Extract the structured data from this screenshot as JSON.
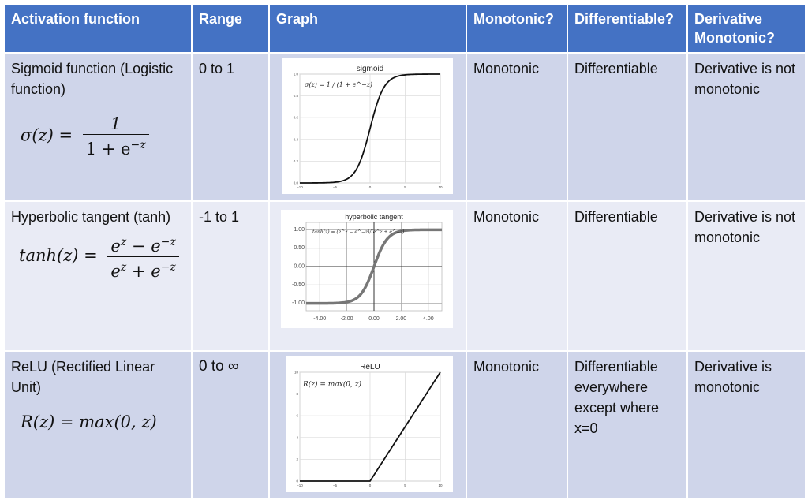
{
  "header": {
    "col1": "Activation function",
    "col2": "Range",
    "col3": "Graph",
    "col4": "Monotonic?",
    "col5": "Differentiable?",
    "col6": "Derivative Monotonic?"
  },
  "rows": [
    {
      "name": "Sigmoid function (Logistic function)",
      "formula_lhs": "σ(z) =",
      "formula_num": "1",
      "formula_den_base": "1 + e",
      "formula_den_exp": "−z",
      "range": "0 to 1",
      "monotonic": "Monotonic",
      "differentiable": "Differentiable",
      "derivative": "Derivative is not monotonic",
      "graph": {
        "title": "sigmoid",
        "formula_text": "σ(z) = 1 / (1 + e^−z)",
        "x_ticks": [
          "−10",
          "−5",
          "0",
          "5",
          "10"
        ],
        "y_ticks": [
          "0.0",
          "0.2",
          "0.4",
          "0.6",
          "0.8",
          "1.0"
        ]
      }
    },
    {
      "name": "Hyperbolic tangent (tanh)",
      "formula_lhs": "tanh(z) =",
      "formula_num_a": "e",
      "formula_num_exp_a": "z",
      "formula_num_mid": " − e",
      "formula_num_exp_b": "−z",
      "formula_den_a": "e",
      "formula_den_exp_a": "z",
      "formula_den_mid": " + e",
      "formula_den_exp_b": "−z",
      "range": "-1 to 1",
      "monotonic": "Monotonic",
      "differentiable": "Differentiable",
      "derivative": "Derivative is not monotonic",
      "graph": {
        "title": "hyperbolic tangent",
        "formula_text": "tanh(z) = (e^z − e^−z)/(e^z + e^−z)",
        "x_ticks": [
          "-4.00",
          "-2.00",
          "0.00",
          "2.00",
          "4.00"
        ],
        "y_ticks": [
          "1.00",
          "0.50",
          "0.00",
          "-0.50",
          "-1.00"
        ]
      }
    },
    {
      "name": "ReLU (Rectified Linear Unit)",
      "formula": "R(z) = max(0, z)",
      "range": "0 to ∞",
      "monotonic": "Monotonic",
      "differentiable": "Differentiable everywhere except where x=0",
      "derivative": "Derivative is monotonic",
      "graph": {
        "title": "ReLU",
        "formula_text": "R(z) = max(0,  z)",
        "x_ticks": [
          "−10",
          "−5",
          "0",
          "5",
          "10"
        ],
        "y_ticks": [
          "0",
          "2",
          "4",
          "6",
          "8",
          "10"
        ]
      }
    }
  ]
}
